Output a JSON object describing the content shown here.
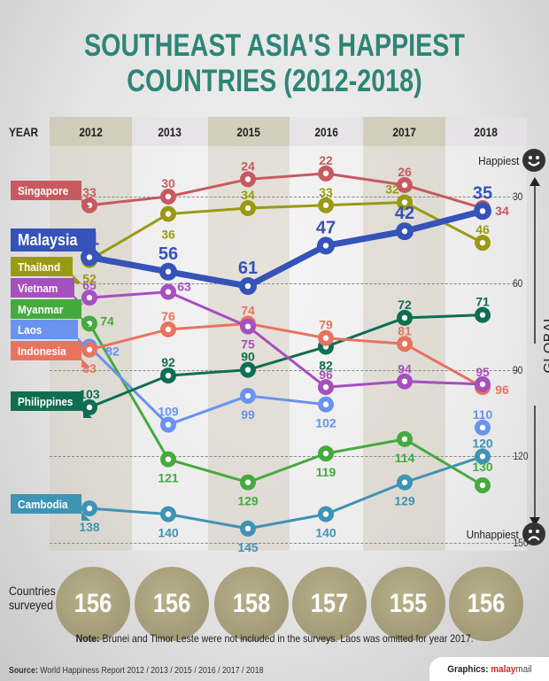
{
  "title_line1": "SOUTHEAST ASIA'S HAPPIEST",
  "title_line2": "COUNTRIES (2012-2018)",
  "year_label": "YEAR",
  "axis": {
    "title": "GLOBAL RANKING",
    "top_label": "Happiest",
    "bottom_label": "Unhappiest",
    "ticks": [
      "30",
      "60",
      "90",
      "120",
      "150"
    ]
  },
  "countries_surveyed_label": [
    "Countries",
    "surveyed"
  ],
  "countries_surveyed": [
    "156",
    "156",
    "158",
    "157",
    "155",
    "156"
  ],
  "note_bold": "Note:",
  "note_text": " Brunei and Timor Leste were not included in the surveys. Laos was omitted for year 2017.",
  "source_bold": "Source:",
  "source_text": " World Happiness Report 2012 / 2013 / 2015 / 2016 / 2017 / 2018",
  "credit_prefix": "Graphics: ",
  "credit_brand_a": "malay",
  "credit_brand_b": "mail",
  "chart_data": {
    "type": "line",
    "title": "SOUTHEAST ASIA'S HAPPIEST COUNTRIES (2012-2018)",
    "xlabel": "YEAR",
    "ylabel": "GLOBAL RANKING",
    "categories": [
      "2012",
      "2013",
      "2015",
      "2016",
      "2017",
      "2018"
    ],
    "ylim": [
      150,
      15
    ],
    "y_inverted": true,
    "grid": true,
    "gridlines": [
      30,
      60,
      90,
      120,
      150
    ],
    "series": [
      {
        "name": "Singapore",
        "color": "#c75a5f",
        "values": [
          33,
          30,
          24,
          22,
          26,
          34
        ]
      },
      {
        "name": "Malaysia",
        "color": "#3553b8",
        "values": [
          51,
          56,
          61,
          47,
          42,
          35
        ],
        "highlight": true
      },
      {
        "name": "Thailand",
        "color": "#9a9a12",
        "values": [
          52,
          36,
          34,
          33,
          32,
          46
        ]
      },
      {
        "name": "Vietnam",
        "color": "#a64fbf",
        "values": [
          65,
          63,
          75,
          96,
          94,
          95
        ]
      },
      {
        "name": "Myanmar",
        "color": "#45aa3e",
        "values": [
          74,
          121,
          129,
          119,
          114,
          130
        ]
      },
      {
        "name": "Laos",
        "color": "#6b92ef",
        "values": [
          82,
          109,
          99,
          102,
          null,
          110
        ]
      },
      {
        "name": "Indonesia",
        "color": "#e8735e",
        "values": [
          83,
          76,
          74,
          79,
          81,
          96
        ]
      },
      {
        "name": "Philippines",
        "color": "#0f6e52",
        "values": [
          103,
          92,
          90,
          82,
          72,
          71
        ]
      },
      {
        "name": "Cambodia",
        "color": "#3f93b5",
        "values": [
          138,
          140,
          145,
          140,
          129,
          120
        ]
      }
    ],
    "countries_surveyed": [
      156,
      156,
      158,
      157,
      155,
      156
    ]
  }
}
